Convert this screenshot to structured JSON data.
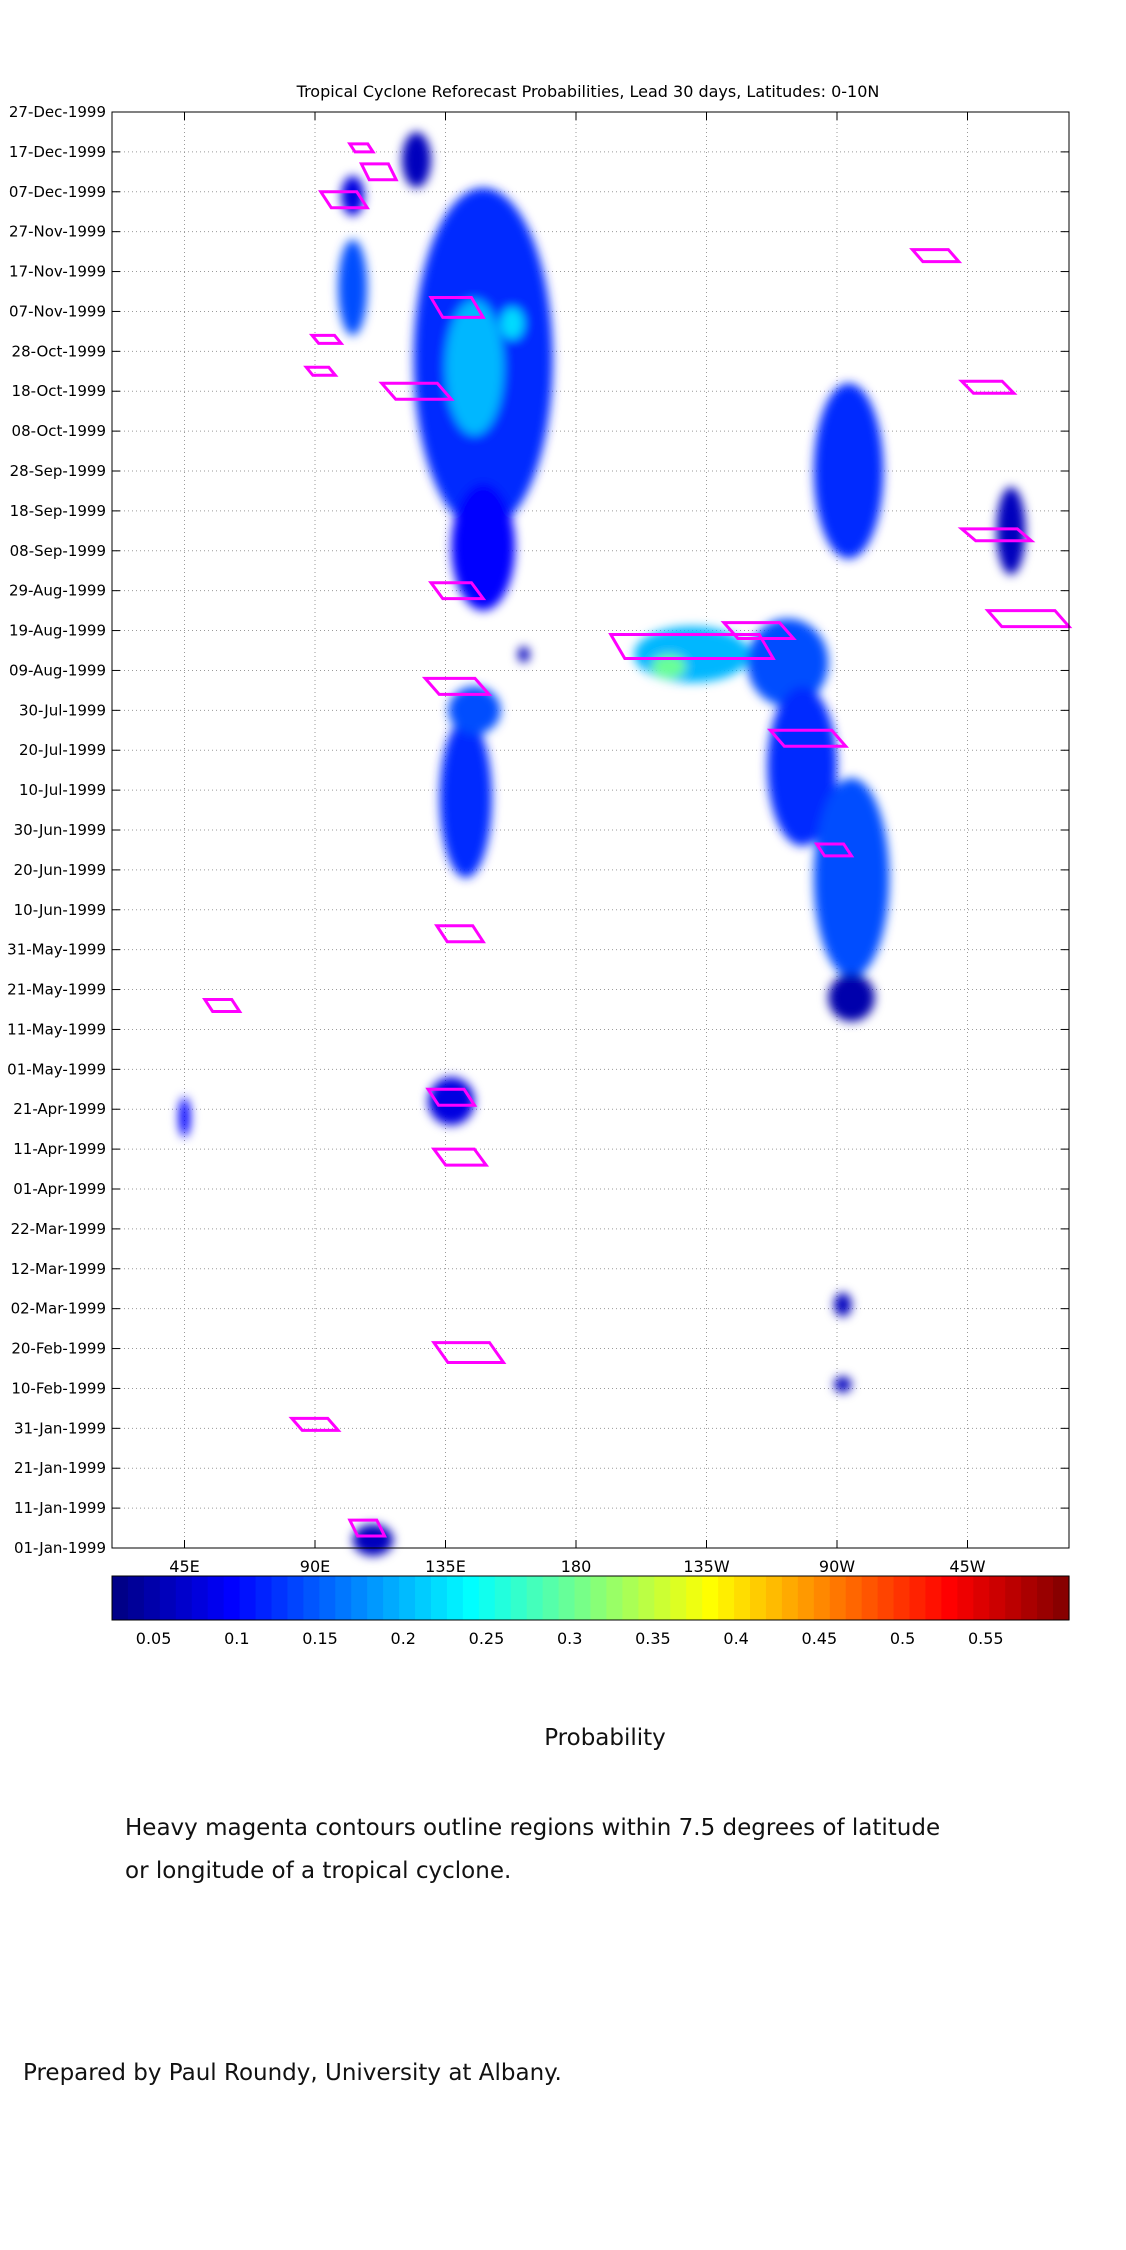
{
  "chart_data": {
    "type": "heatmap",
    "title": "Tropical Cyclone Reforecast Probabilities, Lead 30 days, Latitudes: 0-10N",
    "xlabel": "",
    "ylabel": "",
    "x_range_deg_east": [
      20,
      350
    ],
    "y_range_days_since_1999_01_01": [
      0,
      360
    ],
    "x_ticks": [
      {
        "label": "45E",
        "lon": 45
      },
      {
        "label": "90E",
        "lon": 90
      },
      {
        "label": "135E",
        "lon": 135
      },
      {
        "label": "180",
        "lon": 180
      },
      {
        "label": "135W",
        "lon": 225
      },
      {
        "label": "90W",
        "lon": 270
      },
      {
        "label": "45W",
        "lon": 315
      }
    ],
    "y_ticks": [
      {
        "label": "01-Jan-1999",
        "day": 0
      },
      {
        "label": "11-Jan-1999",
        "day": 10
      },
      {
        "label": "21-Jan-1999",
        "day": 20
      },
      {
        "label": "31-Jan-1999",
        "day": 30
      },
      {
        "label": "10-Feb-1999",
        "day": 40
      },
      {
        "label": "20-Feb-1999",
        "day": 50
      },
      {
        "label": "02-Mar-1999",
        "day": 60
      },
      {
        "label": "12-Mar-1999",
        "day": 70
      },
      {
        "label": "22-Mar-1999",
        "day": 80
      },
      {
        "label": "01-Apr-1999",
        "day": 90
      },
      {
        "label": "11-Apr-1999",
        "day": 100
      },
      {
        "label": "21-Apr-1999",
        "day": 110
      },
      {
        "label": "01-May-1999",
        "day": 120
      },
      {
        "label": "11-May-1999",
        "day": 130
      },
      {
        "label": "21-May-1999",
        "day": 140
      },
      {
        "label": "31-May-1999",
        "day": 150
      },
      {
        "label": "10-Jun-1999",
        "day": 160
      },
      {
        "label": "20-Jun-1999",
        "day": 170
      },
      {
        "label": "30-Jun-1999",
        "day": 180
      },
      {
        "label": "10-Jul-1999",
        "day": 190
      },
      {
        "label": "20-Jul-1999",
        "day": 200
      },
      {
        "label": "30-Jul-1999",
        "day": 210
      },
      {
        "label": "09-Aug-1999",
        "day": 220
      },
      {
        "label": "19-Aug-1999",
        "day": 230
      },
      {
        "label": "29-Aug-1999",
        "day": 240
      },
      {
        "label": "08-Sep-1999",
        "day": 250
      },
      {
        "label": "18-Sep-1999",
        "day": 260
      },
      {
        "label": "28-Sep-1999",
        "day": 270
      },
      {
        "label": "08-Oct-1999",
        "day": 280
      },
      {
        "label": "18-Oct-1999",
        "day": 290
      },
      {
        "label": "28-Oct-1999",
        "day": 300
      },
      {
        "label": "07-Nov-1999",
        "day": 310
      },
      {
        "label": "17-Nov-1999",
        "day": 320
      },
      {
        "label": "27-Nov-1999",
        "day": 330
      },
      {
        "label": "07-Dec-1999",
        "day": 340
      },
      {
        "label": "17-Dec-1999",
        "day": 350
      },
      {
        "label": "27-Dec-1999",
        "day": 360
      }
    ],
    "grid": true,
    "colorscale": {
      "min": 0.025,
      "max": 0.6,
      "ticks": [
        "0.05",
        "0.1",
        "0.15",
        "0.2",
        "0.25",
        "0.3",
        "0.35",
        "0.4",
        "0.45",
        "0.5",
        "0.55"
      ],
      "tick_values": [
        0.05,
        0.1,
        0.15,
        0.2,
        0.25,
        0.3,
        0.35,
        0.4,
        0.45,
        0.5,
        0.55
      ],
      "label": "Probability",
      "colors": [
        "#00007f",
        "#0000ff",
        "#0080ff",
        "#00ffff",
        "#80ff80",
        "#ffff00",
        "#ff8000",
        "#ff0000",
        "#7f0000"
      ]
    },
    "probability_regions": [
      {
        "lon": 103,
        "day": 339,
        "dlon": 4,
        "dday": 5,
        "p": 0.08
      },
      {
        "lon": 103,
        "day": 316,
        "dlon": 5,
        "dday": 12,
        "p": 0.14
      },
      {
        "lon": 148,
        "day": 298,
        "dlon": 24,
        "dday": 43,
        "p": 0.12
      },
      {
        "lon": 145,
        "day": 296,
        "dlon": 10,
        "dday": 17,
        "p": 0.2
      },
      {
        "lon": 158,
        "day": 307,
        "dlon": 4,
        "dday": 4,
        "p": 0.22
      },
      {
        "lon": 125,
        "day": 348,
        "dlon": 5,
        "dday": 7,
        "p": 0.06
      },
      {
        "lon": 274,
        "day": 270,
        "dlon": 12,
        "dday": 22,
        "p": 0.12
      },
      {
        "lon": 330,
        "day": 255,
        "dlon": 5,
        "dday": 11,
        "p": 0.06
      },
      {
        "lon": 148,
        "day": 251,
        "dlon": 11,
        "dday": 16,
        "p": 0.1
      },
      {
        "lon": 162,
        "day": 224,
        "dlon": 2,
        "dday": 2,
        "p": 0.06
      },
      {
        "lon": 142,
        "day": 188,
        "dlon": 9,
        "dday": 20,
        "p": 0.12
      },
      {
        "lon": 145,
        "day": 210,
        "dlon": 9,
        "dday": 6,
        "p": 0.14
      },
      {
        "lon": 220,
        "day": 224,
        "dlon": 20,
        "dday": 7,
        "p": 0.2
      },
      {
        "lon": 212,
        "day": 221,
        "dlon": 6,
        "dday": 3,
        "p": 0.3
      },
      {
        "lon": 253,
        "day": 222,
        "dlon": 14,
        "dday": 11,
        "p": 0.14
      },
      {
        "lon": 258,
        "day": 196,
        "dlon": 12,
        "dday": 20,
        "p": 0.12
      },
      {
        "lon": 275,
        "day": 168,
        "dlon": 13,
        "dday": 25,
        "p": 0.14
      },
      {
        "lon": 275,
        "day": 138,
        "dlon": 8,
        "dday": 6,
        "p": 0.05
      },
      {
        "lon": 110,
        "day": 2,
        "dlon": 7,
        "dday": 4,
        "p": 0.06
      },
      {
        "lon": 45,
        "day": 108,
        "dlon": 2,
        "dday": 5,
        "p": 0.1
      },
      {
        "lon": 137,
        "day": 112,
        "dlon": 8,
        "dday": 6,
        "p": 0.08
      },
      {
        "lon": 272,
        "day": 61,
        "dlon": 3,
        "dday": 3,
        "p": 0.06
      },
      {
        "lon": 272,
        "day": 41,
        "dlon": 3,
        "dday": 2,
        "p": 0.06
      }
    ],
    "tropical_cyclone_contours": [
      {
        "lon": 106,
        "day": 351,
        "dlon": 4,
        "dday": 1
      },
      {
        "lon": 112,
        "day": 345,
        "dlon": 6,
        "dday": 2
      },
      {
        "lon": 100,
        "day": 338,
        "dlon": 8,
        "dday": 2
      },
      {
        "lon": 139,
        "day": 311,
        "dlon": 9,
        "dday": 2.5
      },
      {
        "lon": 125,
        "day": 290,
        "dlon": 12,
        "dday": 2
      },
      {
        "lon": 94,
        "day": 303,
        "dlon": 5,
        "dday": 1
      },
      {
        "lon": 92,
        "day": 295,
        "dlon": 5,
        "dday": 1
      },
      {
        "lon": 243,
        "day": 230,
        "dlon": 12,
        "dday": 2
      },
      {
        "lon": 220,
        "day": 226,
        "dlon": 28,
        "dday": 3
      },
      {
        "lon": 260,
        "day": 203,
        "dlon": 13,
        "dday": 2
      },
      {
        "lon": 269,
        "day": 175,
        "dlon": 6,
        "dday": 1.5
      },
      {
        "lon": 139,
        "day": 216,
        "dlon": 11,
        "dday": 2
      },
      {
        "lon": 139,
        "day": 240,
        "dlon": 9,
        "dday": 2
      },
      {
        "lon": 304,
        "day": 324,
        "dlon": 8,
        "dday": 1.5
      },
      {
        "lon": 322,
        "day": 291,
        "dlon": 9,
        "dday": 1.5
      },
      {
        "lon": 336,
        "day": 233,
        "dlon": 14,
        "dday": 2
      },
      {
        "lon": 325,
        "day": 254,
        "dlon": 12,
        "dday": 1.5
      },
      {
        "lon": 137,
        "day": 113,
        "dlon": 8,
        "dday": 2
      },
      {
        "lon": 140,
        "day": 98,
        "dlon": 9,
        "dday": 2
      },
      {
        "lon": 143,
        "day": 49,
        "dlon": 12,
        "dday": 2.5
      },
      {
        "lon": 90,
        "day": 31,
        "dlon": 8,
        "dday": 1.5
      },
      {
        "lon": 108,
        "day": 5,
        "dlon": 6,
        "dday": 2
      },
      {
        "lon": 58,
        "day": 136,
        "dlon": 6,
        "dday": 1.5
      },
      {
        "lon": 140,
        "day": 154,
        "dlon": 8,
        "dday": 2
      }
    ]
  },
  "colorbar_label": "Probability",
  "note_line_1": "Heavy magenta contours outline regions within 7.5 degrees of latitude",
  "note_line_2": "or longitude of a tropical cyclone.",
  "credit": "Prepared by Paul Roundy, University at Albany."
}
